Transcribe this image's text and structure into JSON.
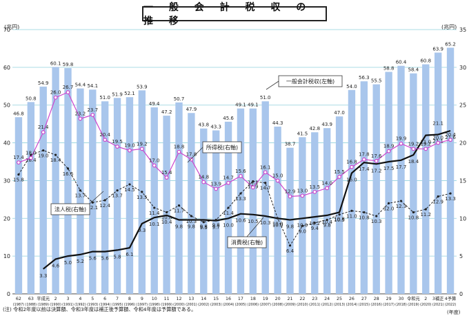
{
  "title": "一 般 会 計 税 収 の 推 移",
  "left_unit": "(兆円)",
  "right_unit": "(兆円)",
  "year_unit": "(年度)",
  "note": "(注) 令和2年度以前は決算額、令和3年度は補正後予算額、令和4年度は予算額である。",
  "chart_data": {
    "type": "bar+line",
    "title": "一般会計税収の推移",
    "xlabel": "(年度)",
    "ylabel_left": "(兆円)",
    "ylabel_right": "(兆円)",
    "ylim_left": [
      0,
      70
    ],
    "ylim_right": [
      0,
      35
    ],
    "yticks_left": [
      0,
      10,
      20,
      30,
      40,
      50,
      60,
      70
    ],
    "yticks_right": [
      0,
      5,
      10,
      15,
      20,
      25,
      30,
      35
    ],
    "categories": [
      "62",
      "63",
      "平成元",
      "2",
      "3",
      "4",
      "5",
      "6",
      "7",
      "8",
      "9",
      "10",
      "11",
      "12",
      "13",
      "14",
      "15",
      "16",
      "17",
      "18",
      "19",
      "20",
      "21",
      "22",
      "23",
      "24",
      "25",
      "26",
      "27",
      "28",
      "29",
      "30",
      "令和元",
      "2",
      "3補正",
      "4予算"
    ],
    "years": [
      "(1987)",
      "(1988)",
      "(1989)",
      "(1990)",
      "(1991)",
      "(1992)",
      "(1993)",
      "(1994)",
      "(1995)",
      "(1996)",
      "(1997)",
      "(1998)",
      "(1999)",
      "(2000)",
      "(2001)",
      "(2002)",
      "(2003)",
      "(2004)",
      "(2005)",
      "(2006)",
      "(2007)",
      "(2008)",
      "(2009)",
      "(2010)",
      "(2011)",
      "(2012)",
      "(2013)",
      "(2014)",
      "(2015)",
      "(2016)",
      "(2017)",
      "(2018)",
      "(2019)",
      "(2020)",
      "(2021)",
      "(2022)"
    ],
    "series": [
      {
        "name": "一般会計税収",
        "axis": "left",
        "kind": "bar",
        "color": "#a9c6ec",
        "values": [
          46.8,
          50.8,
          54.9,
          60.1,
          59.8,
          54.4,
          54.1,
          51.0,
          51.9,
          52.1,
          53.9,
          49.4,
          47.2,
          50.7,
          47.9,
          43.8,
          43.3,
          45.6,
          49.1,
          49.1,
          51.0,
          44.3,
          38.7,
          41.5,
          42.8,
          43.9,
          47.0,
          54.0,
          56.3,
          55.5,
          58.8,
          60.4,
          58.4,
          60.8,
          63.9,
          65.2
        ]
      },
      {
        "name": "所得税",
        "axis": "right",
        "kind": "line",
        "color": "#cc44cc",
        "values": [
          17.4,
          18.0,
          21.4,
          26.0,
          26.7,
          23.2,
          23.7,
          20.4,
          19.5,
          19.0,
          19.2,
          17.0,
          15.4,
          18.8,
          17.8,
          14.8,
          13.9,
          14.7,
          15.6,
          14.1,
          16.1,
          15.0,
          12.9,
          13.0,
          13.5,
          14.0,
          15.5,
          16.8,
          17.8,
          17.6,
          18.9,
          19.9,
          19.2,
          19.2,
          20.0,
          20.4
        ]
      },
      {
        "name": "法人税",
        "axis": "right",
        "kind": "dashed",
        "color": "#222222",
        "values": [
          15.8,
          18.4,
          19.0,
          18.4,
          16.6,
          13.7,
          12.1,
          12.4,
          13.7,
          14.5,
          13.5,
          11.4,
          10.8,
          11.7,
          10.3,
          9.5,
          9.8,
          11.4,
          13.3,
          14.9,
          14.7,
          10.0,
          6.4,
          9.0,
          9.4,
          9.8,
          10.5,
          11.0,
          10.8,
          10.3,
          12.0,
          12.3,
          10.8,
          11.2,
          12.9,
          13.3
        ]
      },
      {
        "name": "消費税",
        "axis": "right",
        "kind": "line",
        "color": "#111111",
        "values": [
          null,
          null,
          3.3,
          4.6,
          5.0,
          5.2,
          5.6,
          5.6,
          5.8,
          6.1,
          9.3,
          10.1,
          10.4,
          9.8,
          9.8,
          9.8,
          9.7,
          10.0,
          10.6,
          10.5,
          10.3,
          10.0,
          9.8,
          10.0,
          10.2,
          10.4,
          10.8,
          16.0,
          17.4,
          17.2,
          17.5,
          17.7,
          18.4,
          21.0,
          21.1,
          21.6
        ]
      }
    ],
    "label_values": {
      "income_extra": "21.1"
    },
    "legend_labels": {
      "total": "一般会計税収(左軸)",
      "income": "所得税(右軸)",
      "corp": "法人税(右軸)",
      "consumption": "消費税(右軸)"
    }
  }
}
